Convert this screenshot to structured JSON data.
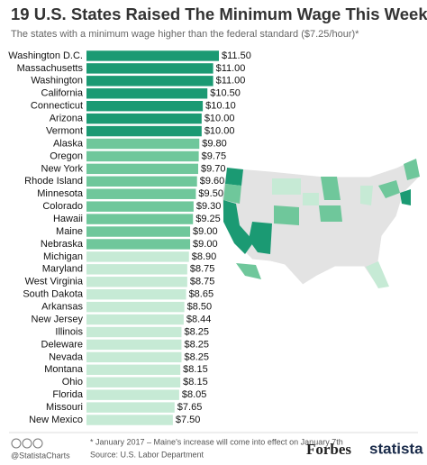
{
  "chart_data": {
    "type": "bar",
    "orientation": "horizontal",
    "title": "19 U.S. States Raised The Minimum Wage This Week",
    "subtitle": "The states with a minimum wage higher than the federal standard ($7.25/hour)*",
    "categories": [
      "Washington D.C.",
      "Massachusetts",
      "Washington",
      "California",
      "Connecticut",
      "Arizona",
      "Vermont",
      "Alaska",
      "Oregon",
      "New York",
      "Rhode Island",
      "Minnesota",
      "Colorado",
      "Hawaii",
      "Maine",
      "Nebraska",
      "Michigan",
      "Maryland",
      "West Virginia",
      "South Dakota",
      "Arkansas",
      "New Jersey",
      "Illinois",
      "Deleware",
      "Nevada",
      "Montana",
      "Ohio",
      "Florida",
      "Missouri",
      "New Mexico"
    ],
    "values": [
      11.5,
      11.0,
      11.0,
      10.5,
      10.1,
      10.0,
      10.0,
      9.8,
      9.75,
      9.7,
      9.6,
      9.5,
      9.3,
      9.25,
      9.0,
      9.0,
      8.9,
      8.75,
      8.75,
      8.65,
      8.5,
      8.44,
      8.25,
      8.25,
      8.25,
      8.15,
      8.15,
      8.05,
      7.65,
      7.5
    ],
    "value_labels": [
      "$11.50",
      "$11.00",
      "$11.00",
      "$10.50",
      "$10.10",
      "$10.00",
      "$10.00",
      "$9.80",
      "$9.75",
      "$9.70",
      "$9.60",
      "$9.50",
      "$9.30",
      "$9.25",
      "$9.00",
      "$9.00",
      "$8.90",
      "$8.75",
      "$8.75",
      "$8.65",
      "$8.50",
      "$8.44",
      "$8.25",
      "$8.25",
      "$8.25",
      "$8.15",
      "$8.15",
      "$8.05",
      "$7.65",
      "$7.50"
    ],
    "colors": [
      "#1b9a73",
      "#1b9a73",
      "#1b9a73",
      "#1b9a73",
      "#1b9a73",
      "#1b9a73",
      "#1b9a73",
      "#6fc79b",
      "#6fc79b",
      "#6fc79b",
      "#6fc79b",
      "#6fc79b",
      "#6fc79b",
      "#6fc79b",
      "#6fc79b",
      "#6fc79b",
      "#c6ead5",
      "#c6ead5",
      "#c6ead5",
      "#c6ead5",
      "#c6ead5",
      "#c6ead5",
      "#c6ead5",
      "#c6ead5",
      "#c6ead5",
      "#c6ead5",
      "#c6ead5",
      "#c6ead5",
      "#c6ead5",
      "#c6ead5"
    ],
    "handle": "@StatistaCharts",
    "note": "* January 2017 – Maine's increase will come into effect on January 7th",
    "source": "Source: U.S. Labor Department",
    "brand_1": "Forbes",
    "brand_2": "statista"
  }
}
